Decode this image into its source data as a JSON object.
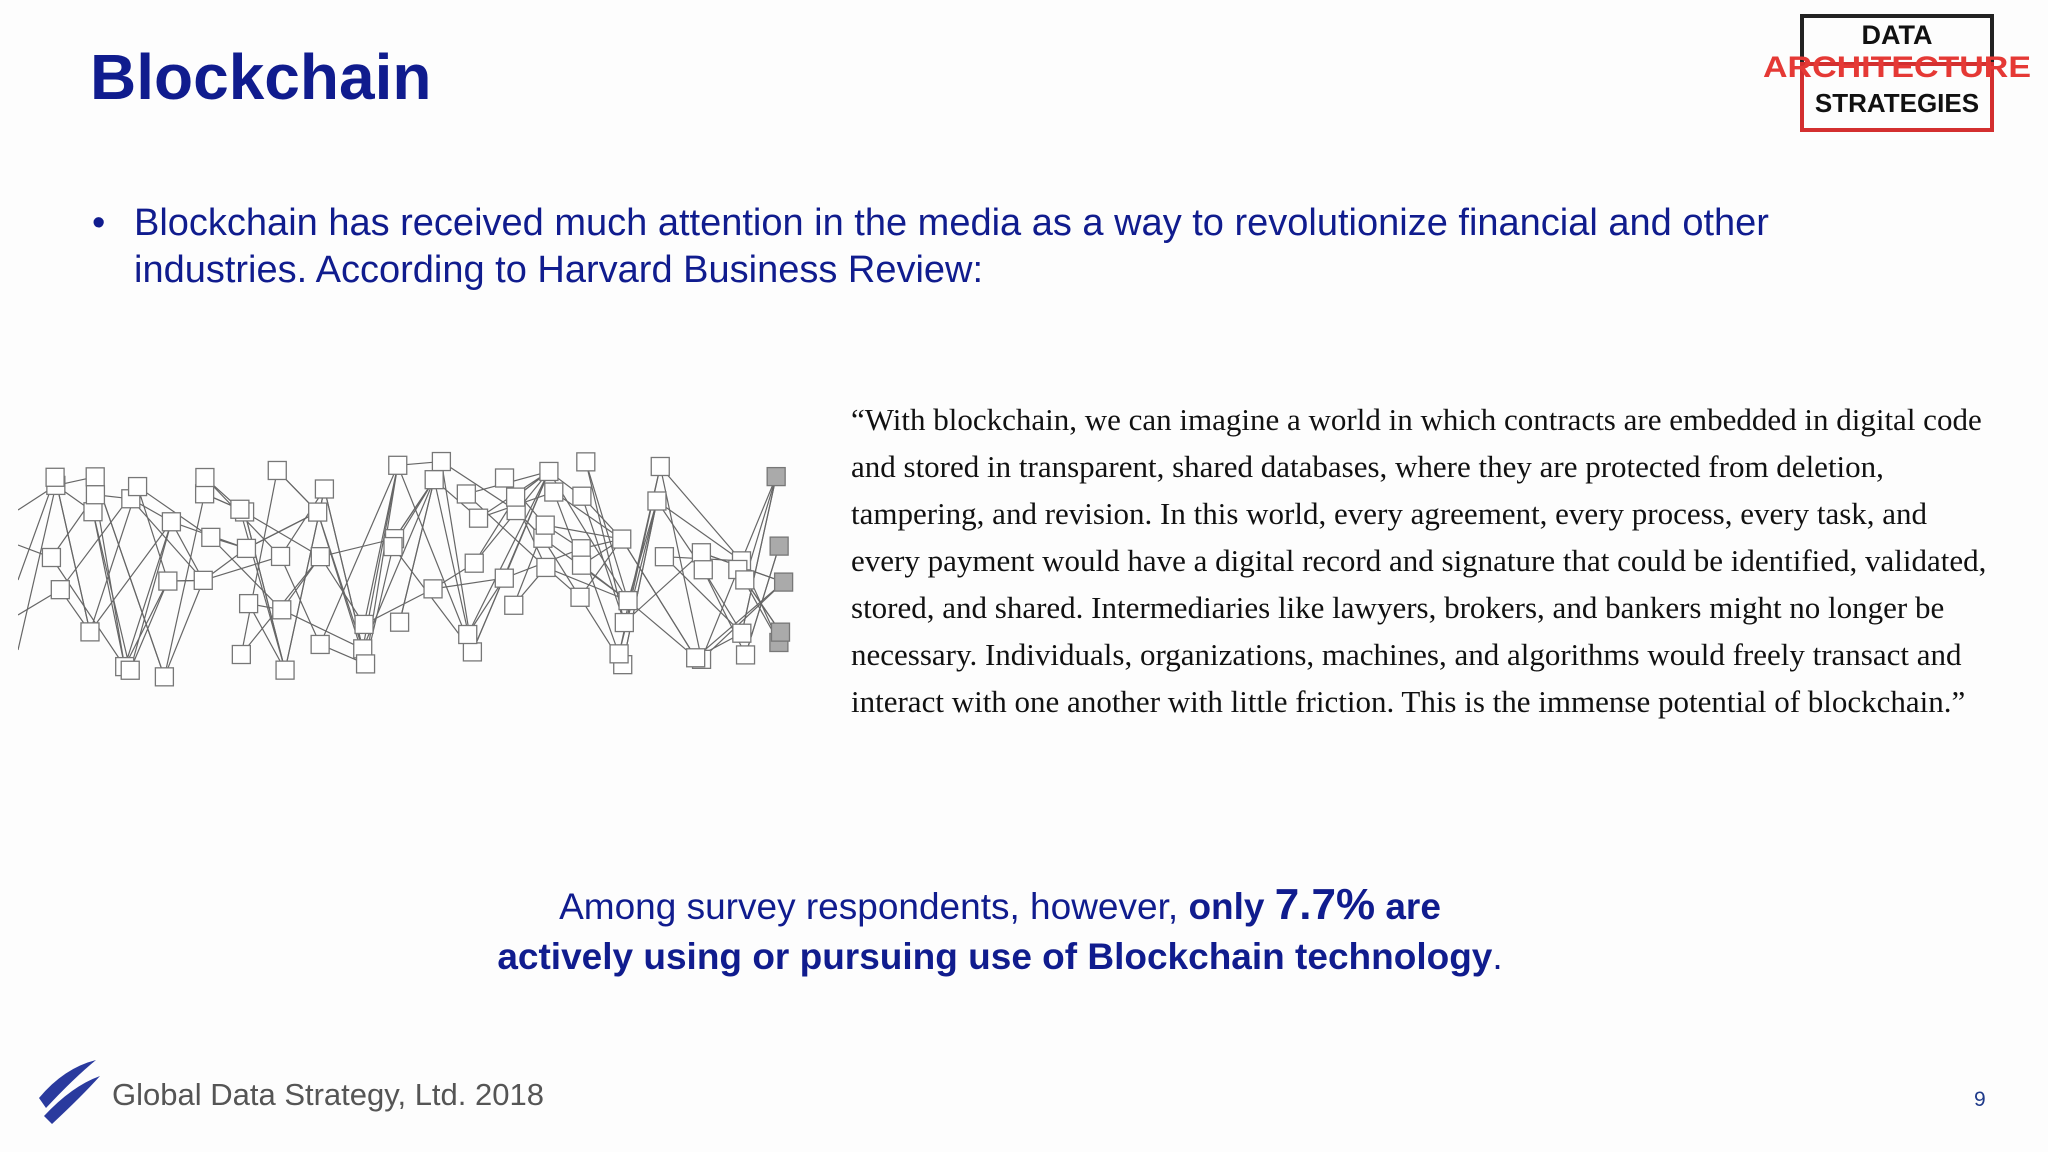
{
  "header": {
    "title": "Blockchain",
    "logo": [
      "DATA",
      "ARCHITECTURE",
      "STRATEGIES"
    ]
  },
  "bullet": "Blockchain has received much attention in the media as a way to revolutionize financial and other industries.  According to Harvard Business Review:",
  "quote": "“With blockchain, we can imagine a world in which contracts are embedded in digital code and stored in transparent, shared databases, where they are protected from deletion, tampering, and revision. In this world, every agreement, every process, every task, and every payment would have a digital record and signature that could be identified, validated, stored, and shared. Intermediaries like lawyers, brokers, and bankers might no longer be necessary. Individuals, organizations, machines, and algorithms would freely transact and interact with one another with little friction. This is the immense potential of blockchain.”",
  "callout": [
    "Among survey respondents, however,",
    "only",
    "7.7%",
    "are",
    "actively using or pursuing use of Blockchain technology",
    "."
  ],
  "footer": {
    "company": "Global Data Strategy, Ltd. 2018",
    "page": "9"
  }
}
